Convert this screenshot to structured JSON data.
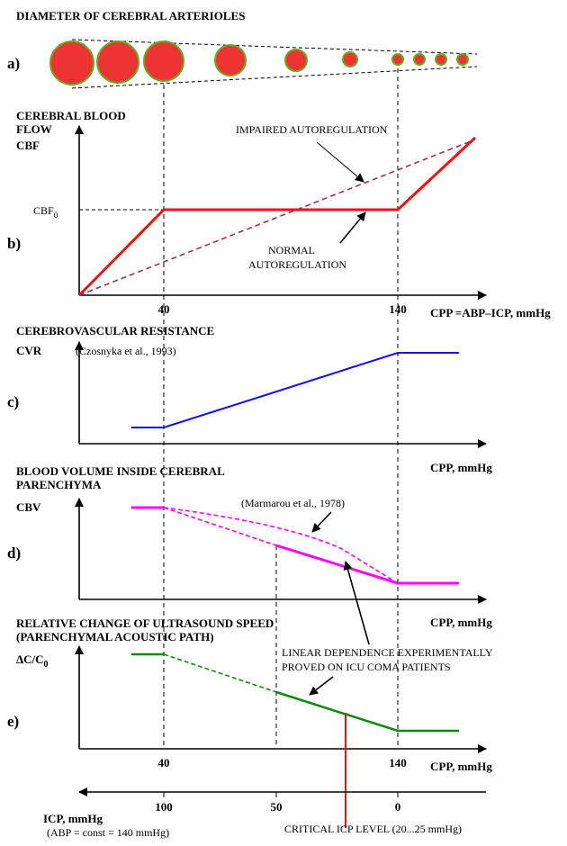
{
  "header": {
    "title": "DIAMETER OF CEREBRAL ARTERIOLES"
  },
  "panels": {
    "a": "a)",
    "b": "b)",
    "c": "c)",
    "d": "d)",
    "e": "e)"
  },
  "panel_b": {
    "title_line1": "CEREBRAL BLOOD",
    "title_line2": "FLOW",
    "title_line3": "CBF",
    "cbf0": "CBF",
    "cbf0_sub": "0",
    "impaired": "IMPAIRED AUTOREGULATION",
    "normal_line1": "NORMAL",
    "normal_line2": "AUTOREGULATION",
    "tick_40": "40",
    "tick_140": "140",
    "xlabel": "CPP =ABP–ICP, mmHg"
  },
  "panel_c": {
    "title": "CEREBROVASCULAR RESISTANCE",
    "ylabel": "CVR",
    "citation": "(Czosnyka et al., 1993)",
    "xlabel": "CPP, mmHg"
  },
  "panel_d": {
    "title_line1": "BLOOD VOLUME INSIDE CEREBRAL",
    "title_line2": "PARENCHYMA",
    "ylabel": "CBV",
    "citation": "(Marmarou et al., 1978)",
    "xlabel": "CPP, mmHg"
  },
  "panel_e": {
    "title_line1": "RELATIVE CHANGE OF ULTRASOUND SPEED",
    "title_line2": "(PARENCHYMAL ACOUSTIC PATH)",
    "ylabel": "ΔC/C",
    "ylabel_sub": "0",
    "linear_line1": "LINEAR DEPENDENCE EXPERIMENTALLY",
    "linear_line2": "PROVED ON ICU COMA PATIENTS",
    "tick_40": "40",
    "tick_140": "140",
    "xlabel": "CPP, mmHg"
  },
  "icp_axis": {
    "label": "ICP, mmHg",
    "note": "(ABP = const = 140 mmHg)",
    "tick_100": "100",
    "tick_50": "50",
    "tick_0": "0",
    "critical": "CRITICAL ICP LEVEL (20...25 mmHg)"
  },
  "colors": {
    "cbf_normal": "#ee1111",
    "cbf_impaired": "#993355",
    "cvr": "#1111ee",
    "cbv": "#ff00ff",
    "ultrasound": "#118811",
    "critical": "#ee1111",
    "arteriole_fill": "#ee3333",
    "arteriole_border": "#66aa22"
  }
}
